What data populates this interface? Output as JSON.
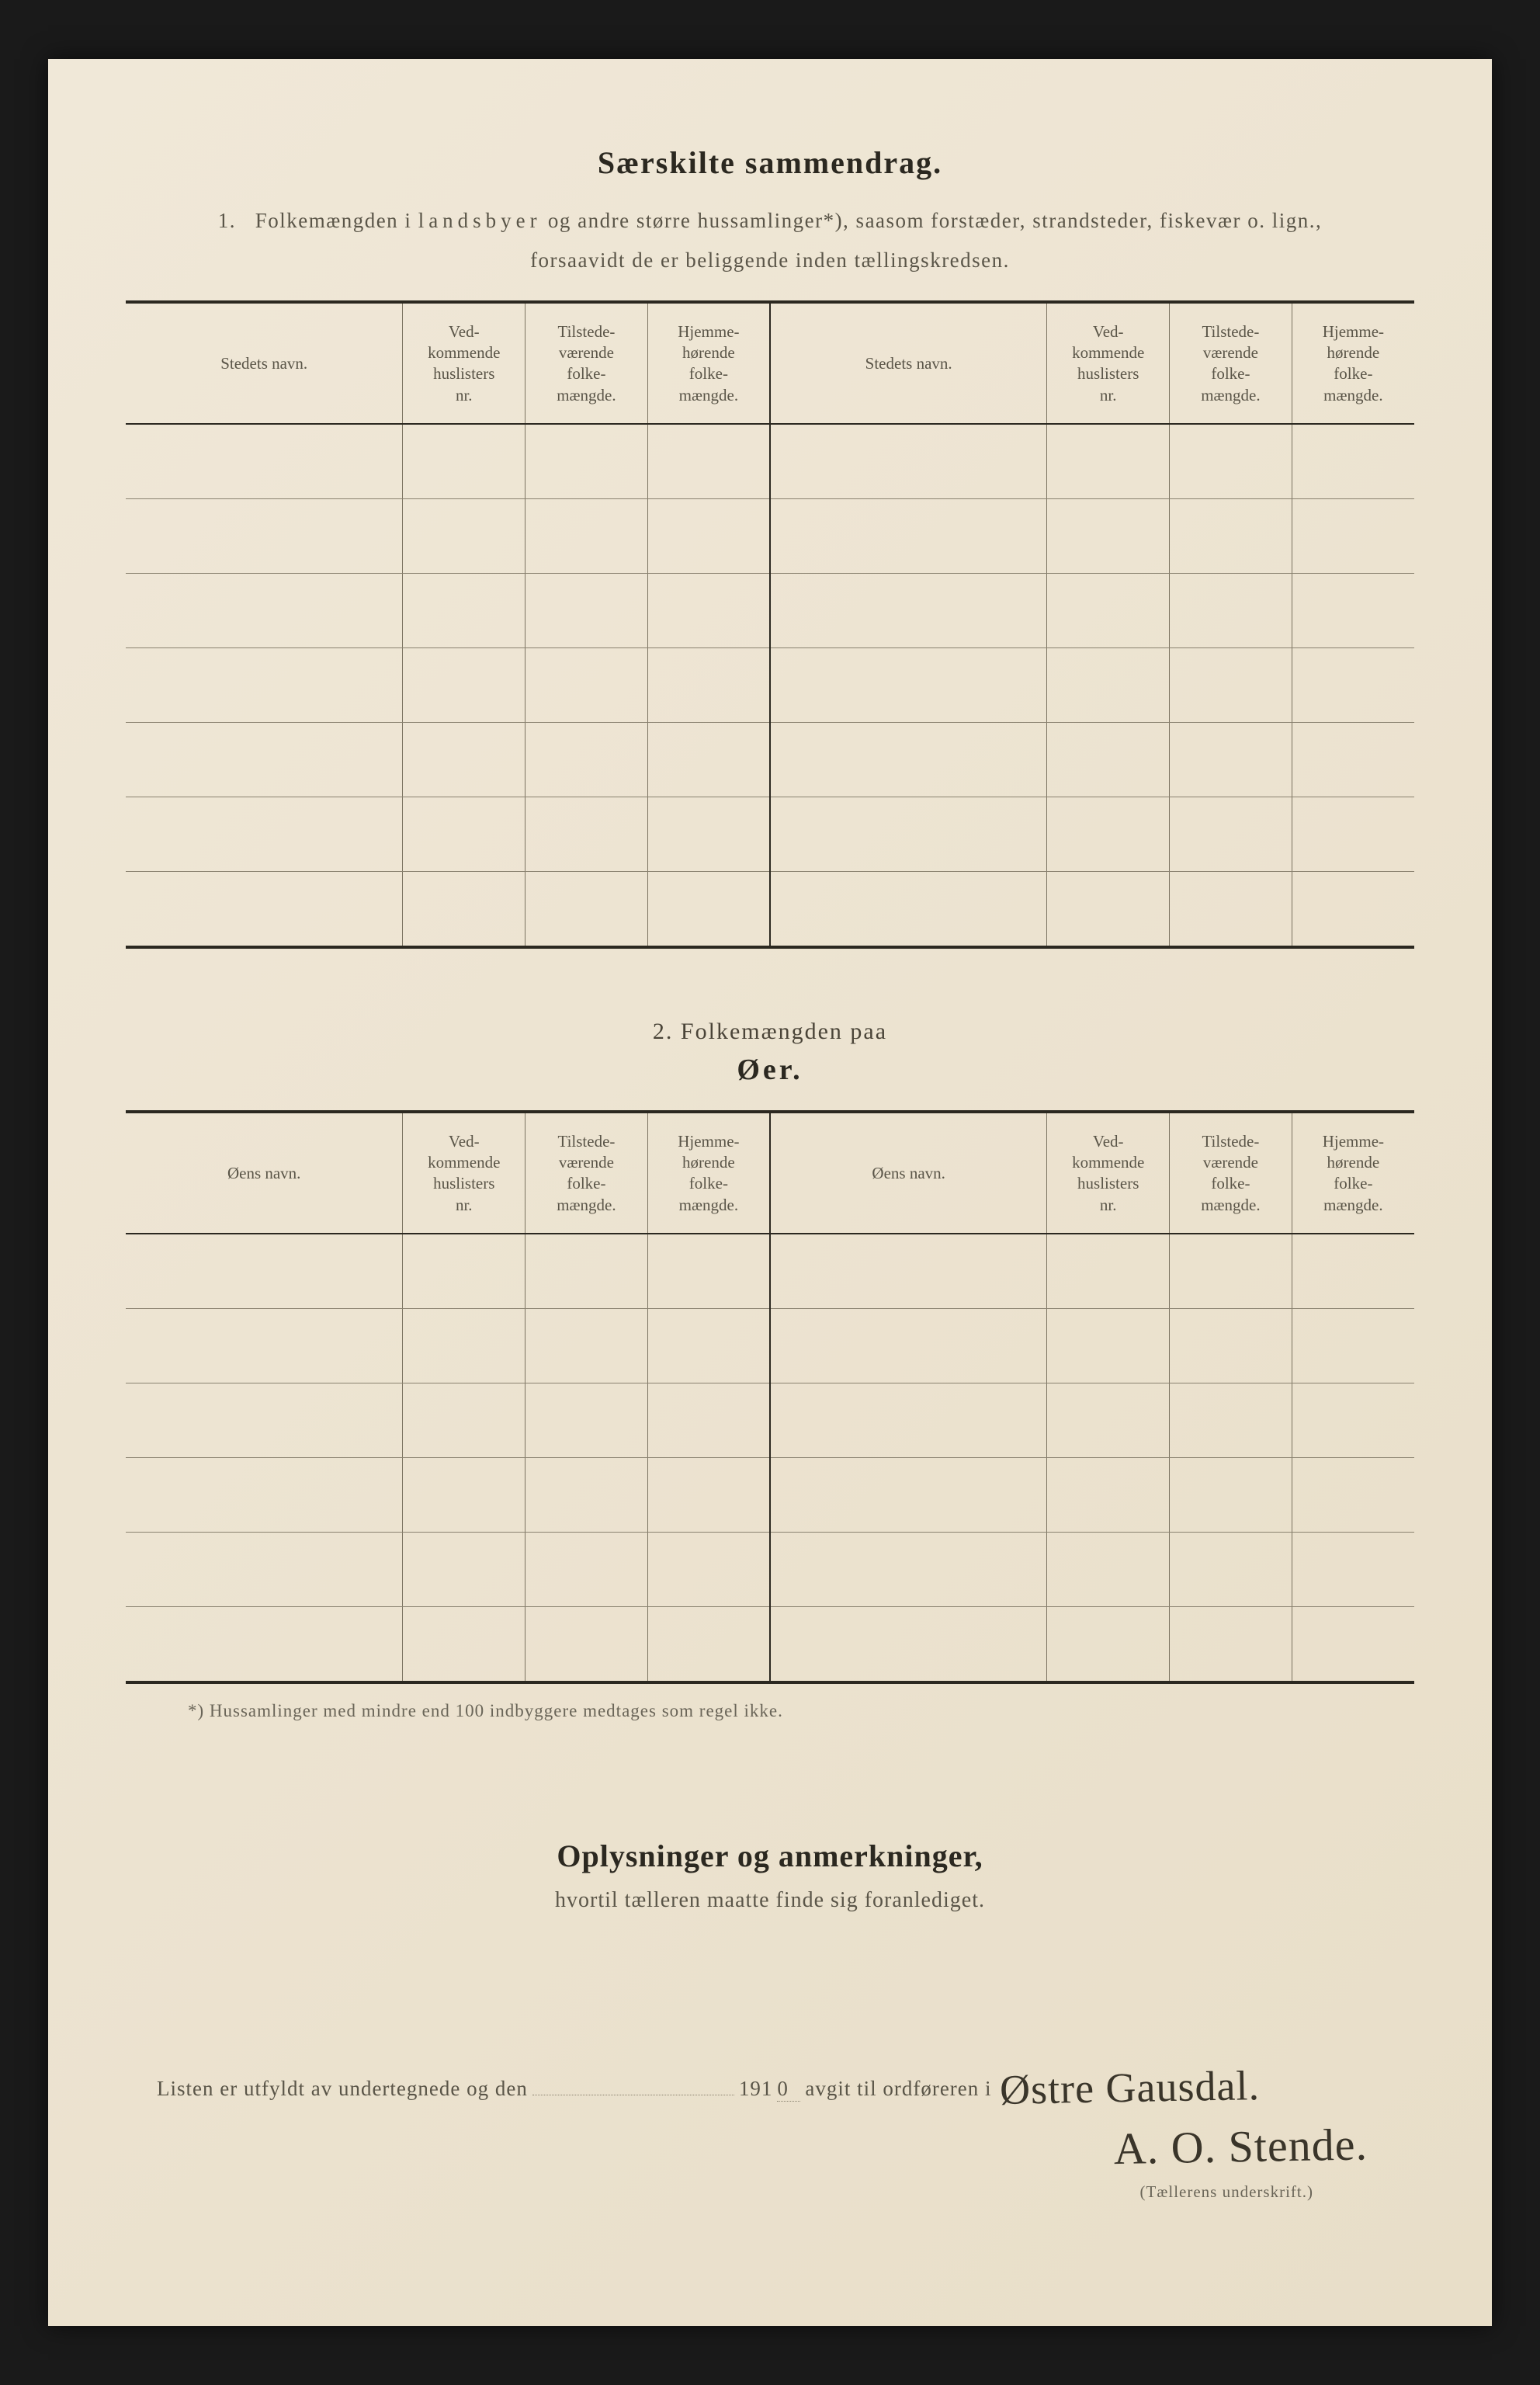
{
  "header": {
    "title": "Særskilte sammendrag.",
    "intro_num": "1.",
    "intro_text_1": "Folkemængden i",
    "intro_spaced": "landsbyer",
    "intro_text_2": "og andre større hussamlinger*), saasom forstæder, strandsteder, fiskevær o. lign.,",
    "intro_text_3": "forsaavidt de er beliggende inden tællingskredsen."
  },
  "table1": {
    "columns": {
      "name_a": "Stedets navn.",
      "huslister": "Ved-\nkommende\nhuslisters\nnr.",
      "tilstede": "Tilstede-\nværende\nfolke-\nmængde.",
      "hjemme": "Hjemme-\nhørende\nfolke-\nmængde.",
      "name_b": "Stedets navn."
    },
    "row_count": 7
  },
  "section2": {
    "lead": "2.   Folkemængden paa",
    "title": "Øer."
  },
  "table2": {
    "columns": {
      "name_a": "Øens navn.",
      "huslister": "Ved-\nkommende\nhuslisters\nnr.",
      "tilstede": "Tilstede-\nværende\nfolke-\nmængde.",
      "hjemme": "Hjemme-\nhørende\nfolke-\nmængde.",
      "name_b": "Øens navn."
    },
    "row_count": 6
  },
  "footnote": "*)  Hussamlinger med mindre end 100 indbyggere medtages som regel ikke.",
  "oplysninger": {
    "title": "Oplysninger og anmerkninger,",
    "sub": "hvortil tælleren maatte finde sig foranlediget."
  },
  "signature": {
    "prefix": "Listen er utfyldt av undertegnede og den",
    "year_prefix": "191",
    "year_digit": "0",
    "mid": "avgit til ordføreren i",
    "place_handwritten": "Østre Gausdal.",
    "name_handwritten": "A. O. Stende.",
    "caption": "(Tællerens underskrift.)"
  },
  "colors": {
    "paper_bg": "#ede4d2",
    "ink": "#2b2820",
    "faded_ink": "#5a5548",
    "border": "#7a7260",
    "handwriting": "#3a352a"
  }
}
